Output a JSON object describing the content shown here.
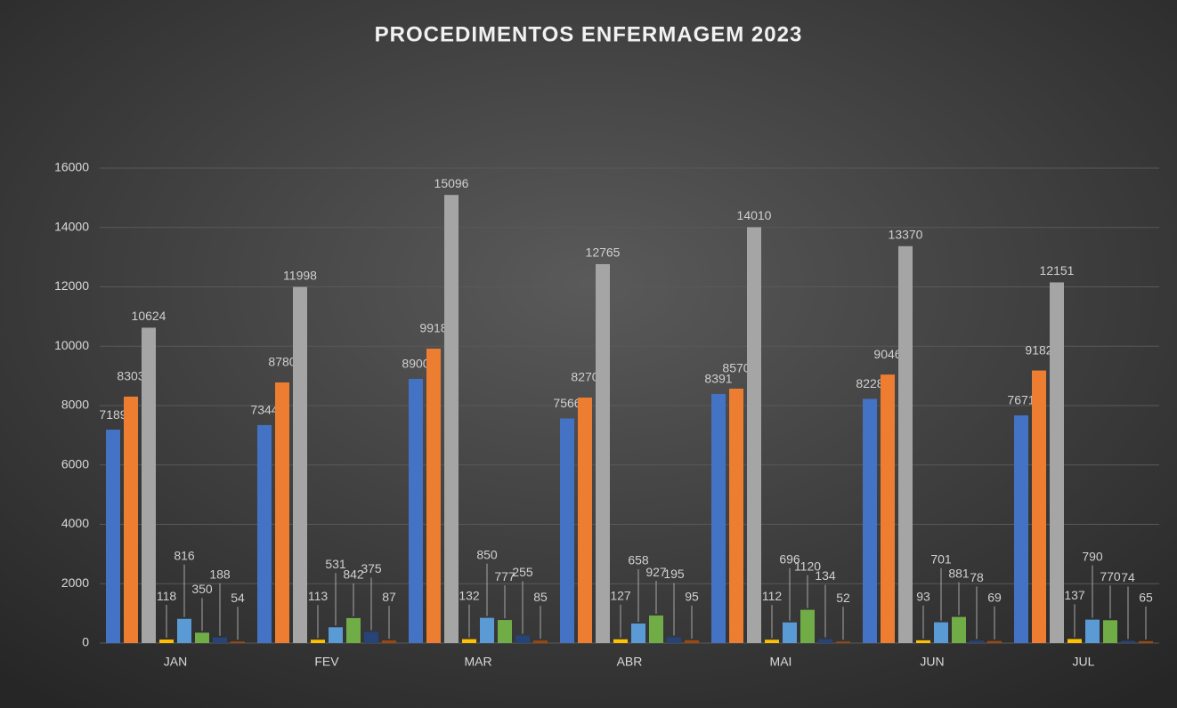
{
  "chart_data": {
    "type": "bar",
    "title": "PROCEDIMENTOS ENFERMAGEM 2023",
    "categories": [
      "JAN",
      "FEV",
      "MAR",
      "ABR",
      "MAI",
      "JUN",
      "JUL"
    ],
    "series": [
      {
        "color": "#4472c4",
        "values": [
          7189,
          7344,
          8900,
          7566,
          8391,
          8228,
          7671
        ]
      },
      {
        "color": "#ed7d31",
        "values": [
          8303,
          8780,
          9918,
          8270,
          8570,
          9046,
          9182
        ]
      },
      {
        "color": "#a5a5a5",
        "values": [
          10624,
          11998,
          15096,
          12765,
          14010,
          13370,
          12151
        ]
      },
      {
        "color": "#ffc000",
        "values": [
          118,
          113,
          132,
          127,
          112,
          93,
          137
        ]
      },
      {
        "color": "#5b9bd5",
        "values": [
          816,
          531,
          850,
          658,
          696,
          701,
          790
        ]
      },
      {
        "color": "#70ad47",
        "values": [
          350,
          842,
          777,
          927,
          1120,
          881,
          770
        ]
      },
      {
        "color": "#264478",
        "values": [
          188,
          375,
          255,
          195,
          134,
          78,
          74
        ]
      },
      {
        "color": "#9e480e",
        "values": [
          54,
          87,
          85,
          95,
          52,
          69,
          65
        ]
      }
    ],
    "ylim": [
      0,
      16000
    ],
    "yticks": [
      0,
      2000,
      4000,
      6000,
      8000,
      10000,
      12000,
      14000,
      16000
    ],
    "grid": true
  }
}
